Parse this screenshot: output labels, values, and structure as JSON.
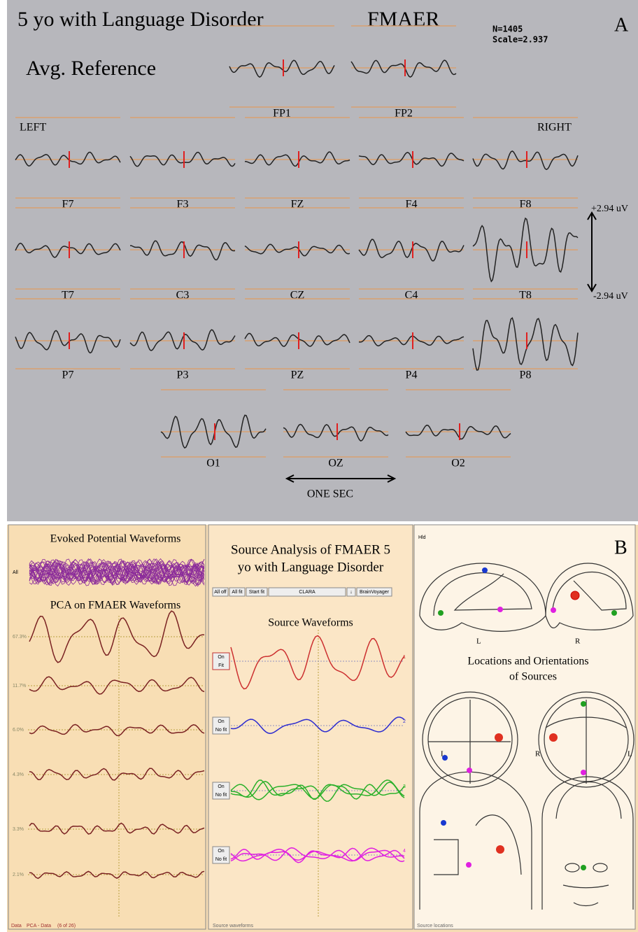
{
  "panel_a": {
    "title": "5 yo with Language Disorder",
    "condition": "FMAER",
    "n": "N=1405",
    "scale": "Scale=2.937",
    "letter": "A",
    "reference": "Avg. Reference",
    "left": "LEFT",
    "right": "RIGHT",
    "electrodes": [
      "FP1",
      "FP2",
      "F7",
      "F3",
      "FZ",
      "F4",
      "F8",
      "T7",
      "C3",
      "CZ",
      "C4",
      "T8",
      "P7",
      "P3",
      "PZ",
      "P4",
      "P8",
      "O1",
      "OZ",
      "O2"
    ],
    "scale_pos": "+2.94 uV",
    "scale_neg": "-2.94 uV",
    "time_bar": "ONE SEC"
  },
  "panel_b": {
    "letter": "B",
    "evoked": {
      "title": "Evoked Potential Waveforms",
      "all": "All"
    },
    "pca": {
      "title": "PCA on FMAER Waveforms",
      "percents": [
        "67.3%",
        "11.7%",
        "6.0%",
        "4.3%",
        "3.3%",
        "2.1%"
      ],
      "status": [
        "Data",
        "PCA - Data",
        "(6 of 26)"
      ]
    },
    "source": {
      "title_lines": [
        "Source Analysis of FMAER 5",
        "yo with Language Disorder"
      ],
      "toolbar": [
        "All off",
        "All fit",
        "Start fit",
        "CLARA",
        "↓",
        "BrainVoyager"
      ],
      "waves_title": "Source Waveforms",
      "buttons": [
        [
          "On",
          "Fit"
        ],
        [
          "On",
          "No fit"
        ],
        [
          "On",
          "No fit"
        ],
        [
          "On",
          "No fit"
        ]
      ],
      "numbers": [
        "1",
        "2",
        "3",
        "4"
      ],
      "status": "Source waveforms"
    },
    "locations": {
      "hold": "Hld",
      "title_lines": [
        "Locations and Orientations",
        "of Sources"
      ],
      "row1": [
        "L",
        "R"
      ],
      "row2": [
        "L",
        "R",
        "L"
      ],
      "status": "Source locations"
    }
  }
}
